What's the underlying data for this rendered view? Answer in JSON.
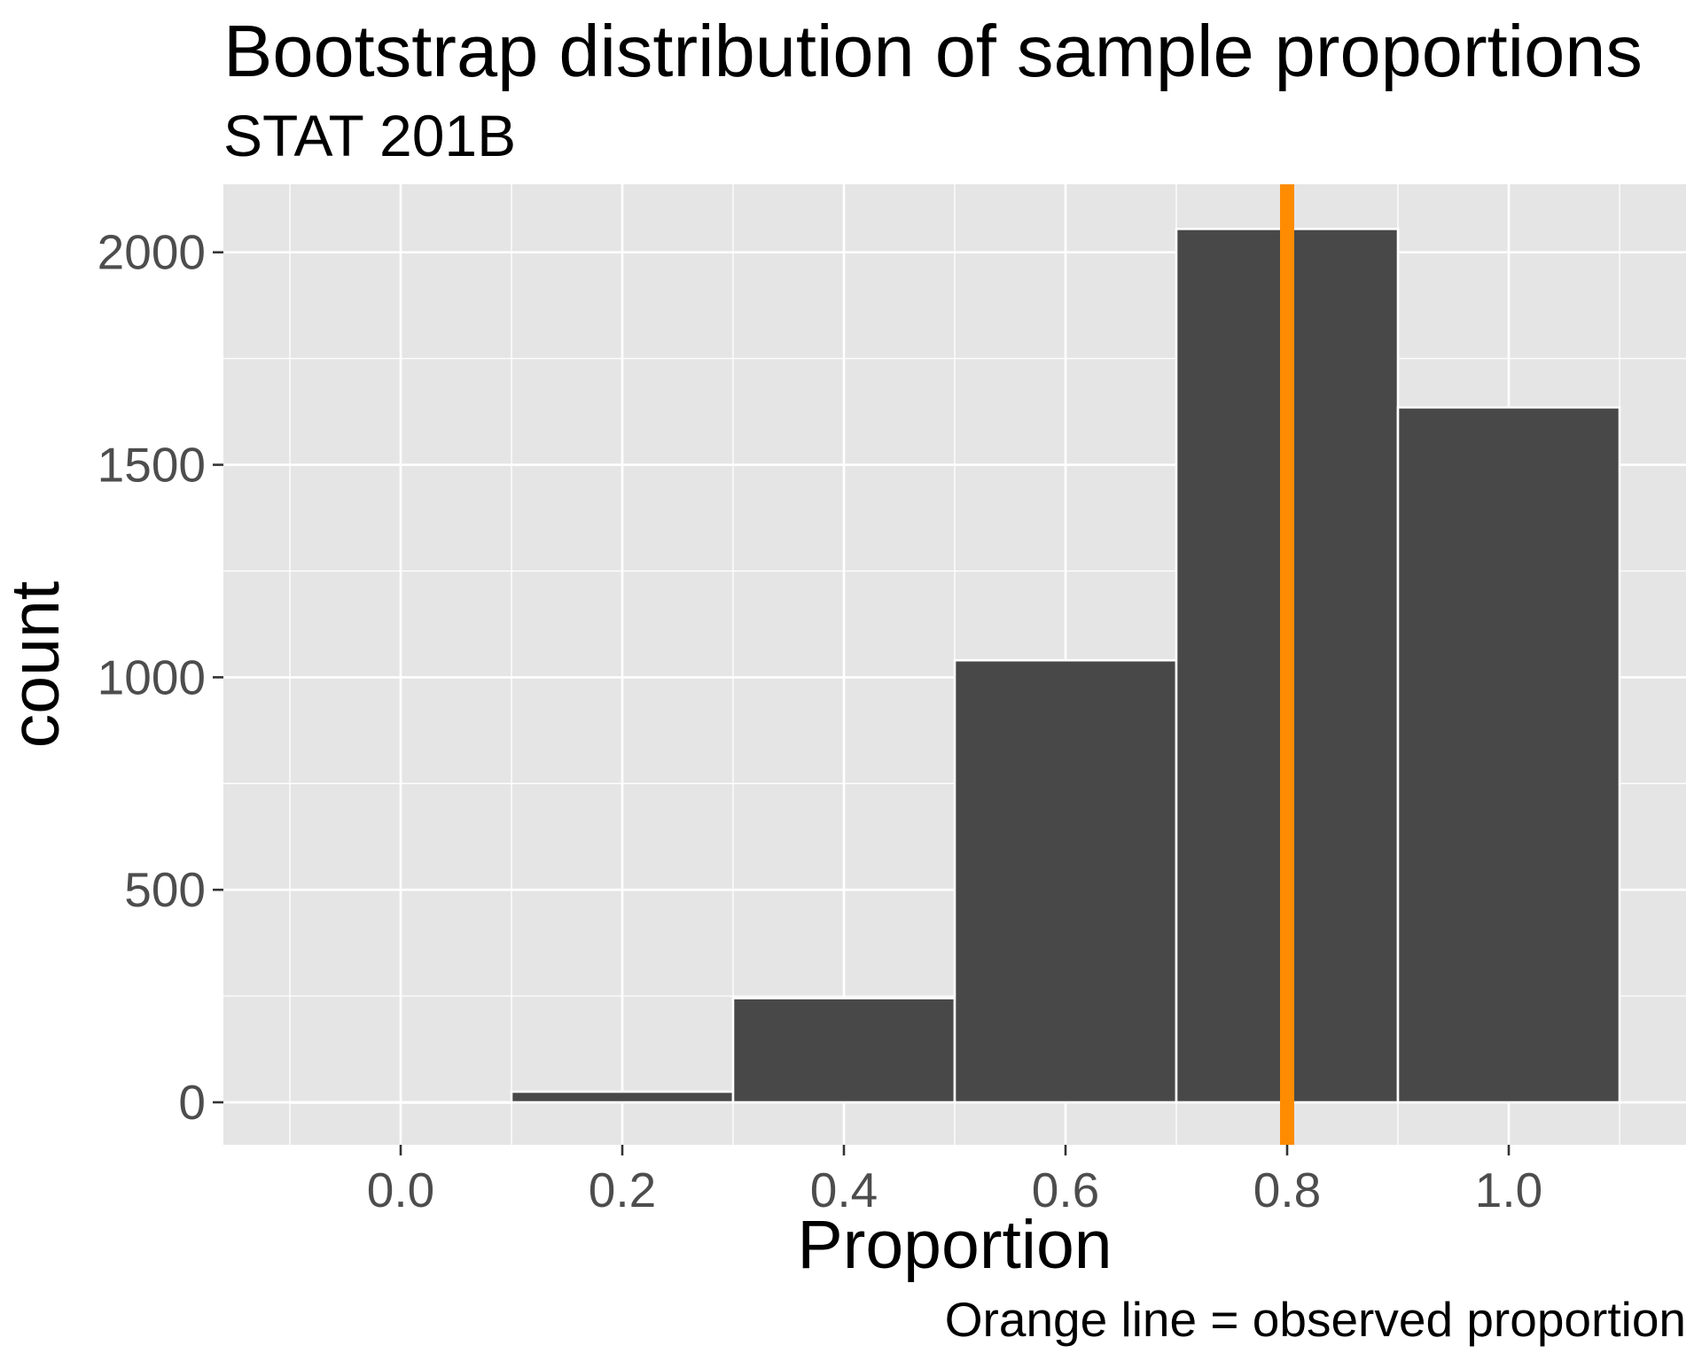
{
  "chart_data": {
    "type": "bar",
    "title": "Bootstrap distribution of sample proportions",
    "subtitle": "STAT 201B",
    "xlabel": "Proportion",
    "ylabel": "count",
    "caption": "Orange line = observed proportion",
    "bin_width": 0.2,
    "bins": [
      {
        "x": 0.0,
        "count": 0
      },
      {
        "x": 0.2,
        "count": 25
      },
      {
        "x": 0.4,
        "count": 245
      },
      {
        "x": 0.6,
        "count": 1040
      },
      {
        "x": 0.8,
        "count": 2055
      },
      {
        "x": 1.0,
        "count": 1635
      }
    ],
    "xlim": [
      -0.16,
      1.16
    ],
    "ylim": [
      -100,
      2160
    ],
    "x_ticks": [
      0.0,
      0.2,
      0.4,
      0.6,
      0.8,
      1.0
    ],
    "x_tick_labels": [
      "0.0",
      "0.2",
      "0.4",
      "0.6",
      "0.8",
      "1.0"
    ],
    "y_ticks": [
      0,
      500,
      1000,
      1500,
      2000
    ],
    "y_tick_labels": [
      "0",
      "500",
      "1000",
      "1500",
      "2000"
    ],
    "reference_line": {
      "x": 0.8,
      "color": "#FF8C00"
    },
    "colors": {
      "bar_fill": "#484848",
      "bar_outline": "#ffffff",
      "panel": "#e5e5e5",
      "grid": "#ffffff"
    },
    "grid": true,
    "legend": "none"
  }
}
